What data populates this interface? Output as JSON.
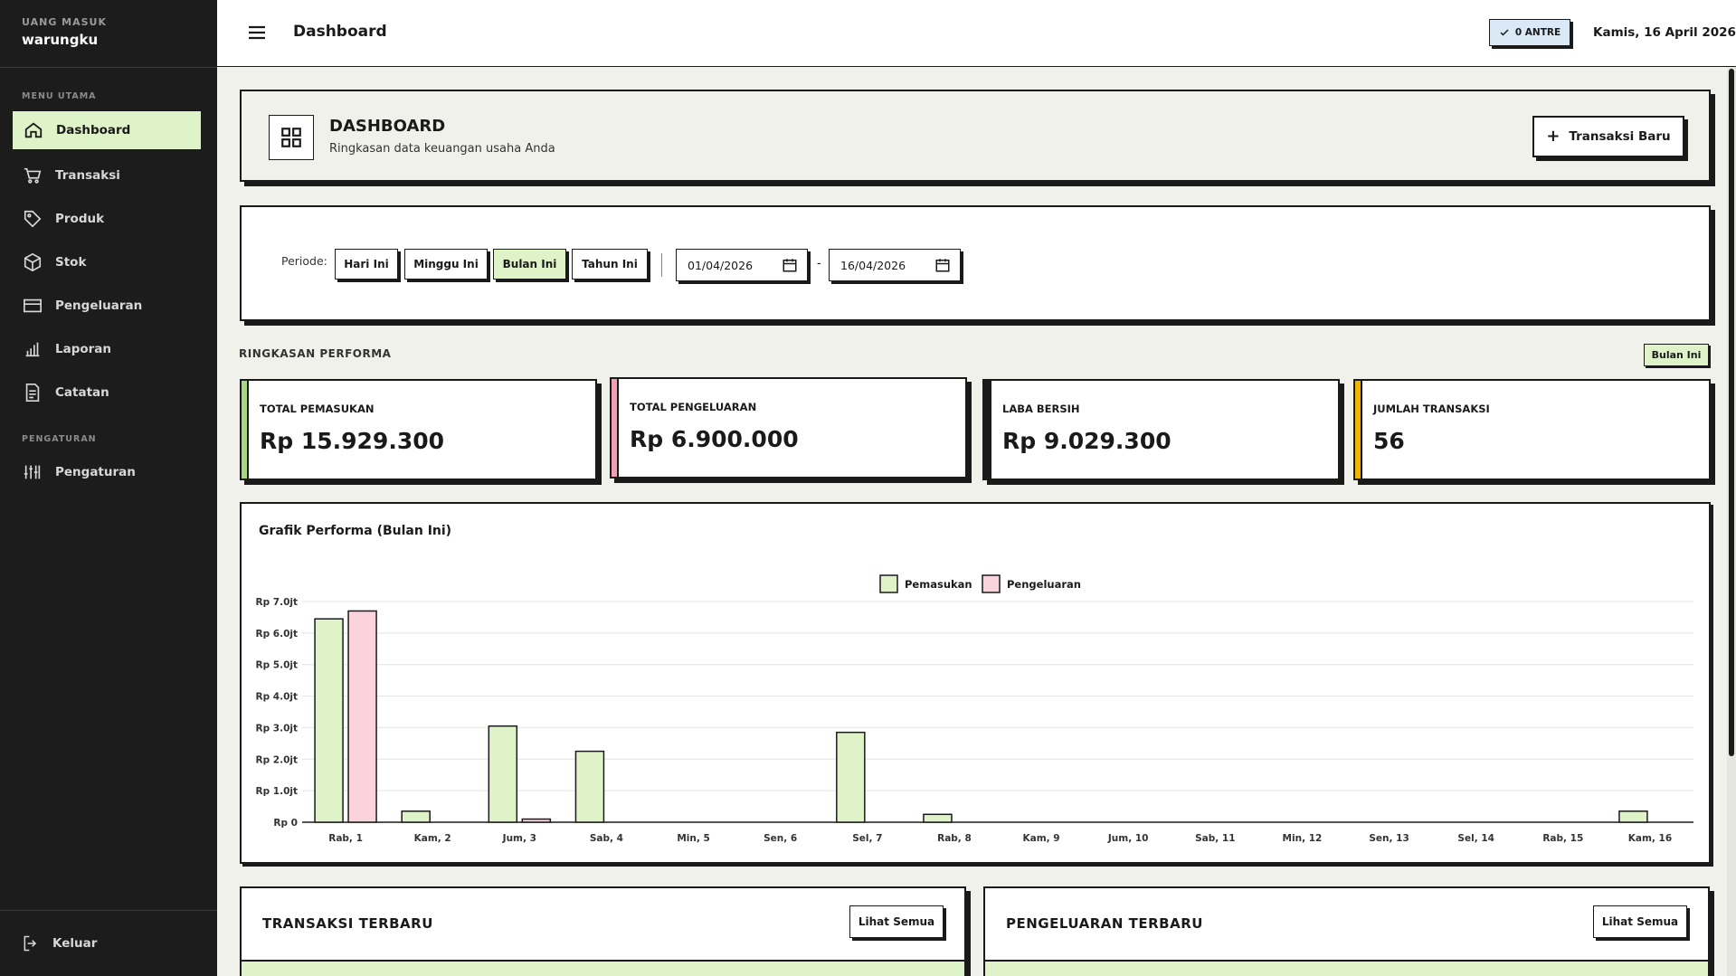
{
  "sidebar": {
    "brand_sub": "UANG MASUK",
    "brand_name": "warungku",
    "section_main": "MENU UTAMA",
    "section_settings": "PENGATURAN",
    "items": [
      {
        "label": "Dashboard",
        "icon": "home-icon"
      },
      {
        "label": "Transaksi",
        "icon": "cart-icon"
      },
      {
        "label": "Produk",
        "icon": "tag-icon"
      },
      {
        "label": "Stok",
        "icon": "box-icon"
      },
      {
        "label": "Pengeluaran",
        "icon": "wallet-icon"
      },
      {
        "label": "Laporan",
        "icon": "bar-chart-icon"
      },
      {
        "label": "Catatan",
        "icon": "note-icon"
      },
      {
        "label": "Pengaturan",
        "icon": "sliders-icon"
      }
    ],
    "logout": "Keluar"
  },
  "topbar": {
    "title": "Dashboard",
    "antre": "0 ANTRE",
    "date": "Kamis, 16 April 2026"
  },
  "header": {
    "title": "DASHBOARD",
    "subtitle": "Ringkasan data keuangan usaha Anda",
    "new_button": "Transaksi Baru"
  },
  "filter": {
    "label": "Periode:",
    "buttons": [
      "Hari Ini",
      "Minggu Ini",
      "Bulan Ini",
      "Tahun Ini"
    ],
    "active": "Bulan Ini",
    "date_from": "01/04/2026",
    "date_to": "16/04/2026",
    "separator": "-"
  },
  "summary": {
    "title": "RINGKASAN PERFORMA",
    "badge": "Bulan Ini",
    "stats": [
      {
        "label": "TOTAL PEMASUKAN",
        "value": "Rp 15.929.300",
        "color": "#a9d77e"
      },
      {
        "label": "TOTAL PENGELUARAN",
        "value": "Rp 6.900.000",
        "color": "#f2a0b3"
      },
      {
        "label": "LABA BERSIH",
        "value": "Rp 9.029.300",
        "color": "#1a1a1a"
      },
      {
        "label": "JUMLAH TRANSAKSI",
        "value": "56",
        "color": "#f0b400"
      }
    ]
  },
  "chart_data": {
    "type": "bar",
    "title": "Grafik Performa (Bulan Ini)",
    "categories": [
      "Rab, 1",
      "Kam, 2",
      "Jum, 3",
      "Sab, 4",
      "Min, 5",
      "Sen, 6",
      "Sel, 7",
      "Rab, 8",
      "Kam, 9",
      "Jum, 10",
      "Sab, 11",
      "Min, 12",
      "Sen, 13",
      "Sel, 14",
      "Rab, 15",
      "Kam, 16"
    ],
    "series": [
      {
        "name": "Pemasukan",
        "color": "#dff3c9",
        "values": [
          6.45,
          0.35,
          3.05,
          2.25,
          0,
          0,
          2.85,
          0.25,
          0,
          0,
          0,
          0,
          0,
          0,
          0,
          0.35
        ]
      },
      {
        "name": "Pengeluaran",
        "color": "#fbd3dc",
        "values": [
          6.7,
          0,
          0.1,
          0,
          0,
          0,
          0,
          0,
          0,
          0,
          0,
          0,
          0,
          0,
          0,
          0
        ]
      }
    ],
    "yticks": [
      "Rp 0",
      "Rp 1.0jt",
      "Rp 2.0jt",
      "Rp 3.0jt",
      "Rp 4.0jt",
      "Rp 5.0jt",
      "Rp 6.0jt",
      "Rp 7.0jt"
    ],
    "ylim": [
      0,
      7
    ],
    "legend": "top-center",
    "grid": true
  },
  "tables": {
    "left_title": "TRANSAKSI TERBARU",
    "right_title": "PENGELUARAN TERBARU",
    "view_all": "Lihat Semua"
  }
}
